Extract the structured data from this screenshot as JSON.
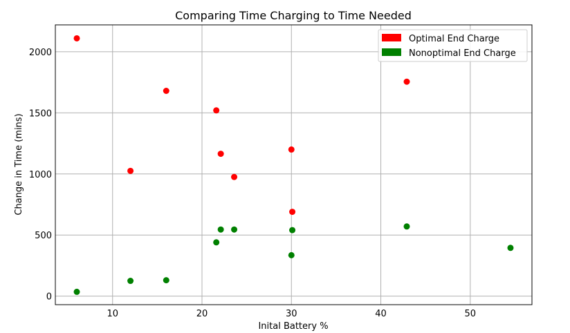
{
  "chart_data": {
    "type": "scatter",
    "title": "Comparing Time Charging to Time Needed",
    "xlabel": "Inital Battery %",
    "ylabel": "Change in Time (mins)",
    "xlim": [
      3.6,
      56.9
    ],
    "ylim": [
      -70,
      2220
    ],
    "xticks": [
      10,
      20,
      30,
      40,
      50
    ],
    "yticks": [
      0,
      500,
      1000,
      1500,
      2000
    ],
    "grid": true,
    "legend_position": "top-right",
    "series": [
      {
        "name": "Optimal End Charge",
        "color": "#ff0000",
        "points": [
          {
            "x": 6,
            "y": 2110
          },
          {
            "x": 12,
            "y": 1025
          },
          {
            "x": 16,
            "y": 1680
          },
          {
            "x": 21.6,
            "y": 1520
          },
          {
            "x": 22.1,
            "y": 1165
          },
          {
            "x": 23.6,
            "y": 975
          },
          {
            "x": 30,
            "y": 1200
          },
          {
            "x": 30.1,
            "y": 690
          },
          {
            "x": 42.9,
            "y": 1755
          }
        ]
      },
      {
        "name": "Nonoptimal End Charge",
        "color": "#008000",
        "points": [
          {
            "x": 6,
            "y": 35
          },
          {
            "x": 12,
            "y": 125
          },
          {
            "x": 16,
            "y": 130
          },
          {
            "x": 21.6,
            "y": 440
          },
          {
            "x": 22.1,
            "y": 545
          },
          {
            "x": 23.6,
            "y": 545
          },
          {
            "x": 30,
            "y": 335
          },
          {
            "x": 30.1,
            "y": 540
          },
          {
            "x": 42.9,
            "y": 570
          },
          {
            "x": 54.5,
            "y": 395
          }
        ]
      }
    ]
  }
}
